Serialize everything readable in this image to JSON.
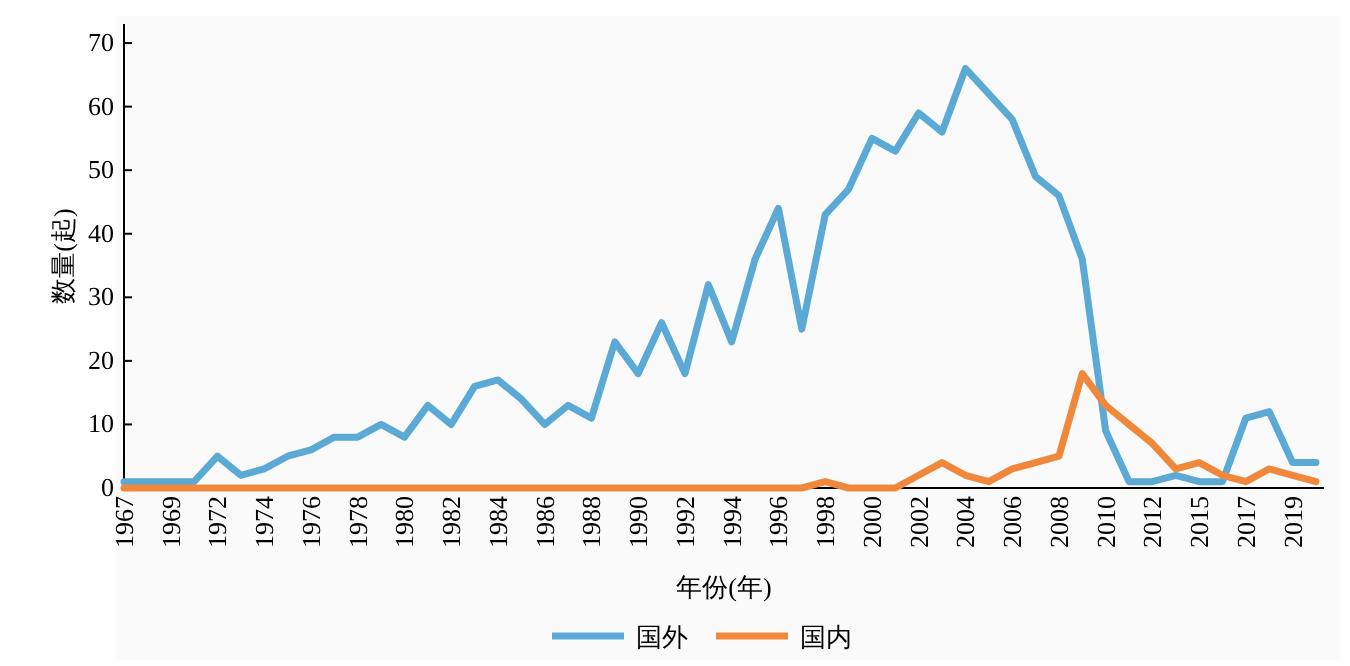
{
  "chart_data": {
    "type": "line",
    "xlabel": "年份(年)",
    "ylabel": "数量(起)",
    "categories": [
      "1967",
      null,
      "1969",
      null,
      "1972",
      null,
      "1974",
      null,
      "1976",
      null,
      "1978",
      null,
      "1980",
      null,
      "1982",
      null,
      "1984",
      null,
      "1986",
      null,
      "1988",
      null,
      "1990",
      null,
      "1992",
      null,
      "1994",
      null,
      "1996",
      null,
      "1998",
      null,
      "2000",
      null,
      "2002",
      null,
      "2004",
      null,
      "2006",
      null,
      "2008",
      null,
      "2010",
      null,
      "2012",
      null,
      "2015",
      null,
      "2017",
      null,
      "2019",
      null
    ],
    "series": [
      {
        "name": "国外",
        "color": "#5ba9d5",
        "values": [
          1,
          1,
          1,
          1,
          5,
          2,
          3,
          5,
          6,
          8,
          8,
          10,
          8,
          13,
          10,
          16,
          17,
          14,
          10,
          13,
          11,
          23,
          18,
          26,
          18,
          32,
          23,
          36,
          44,
          25,
          43,
          47,
          55,
          53,
          59,
          56,
          66,
          62,
          58,
          49,
          46,
          36,
          9,
          1,
          1,
          2,
          1,
          1,
          11,
          12,
          4,
          4
        ]
      },
      {
        "name": "国内",
        "color": "#f0883c",
        "values": [
          0,
          0,
          0,
          0,
          0,
          0,
          0,
          0,
          0,
          0,
          0,
          0,
          0,
          0,
          0,
          0,
          0,
          0,
          0,
          0,
          0,
          0,
          0,
          0,
          0,
          0,
          0,
          0,
          0,
          0,
          1,
          0,
          0,
          0,
          2,
          4,
          2,
          1,
          3,
          4,
          5,
          18,
          13,
          10,
          7,
          3,
          4,
          2,
          1,
          3,
          2,
          1
        ]
      }
    ],
    "ylim": [
      0,
      73
    ],
    "yticks": [
      0,
      10,
      20,
      30,
      40,
      50,
      60,
      70
    ],
    "grid": false,
    "legend": "bottom",
    "marker": "none",
    "line_style": "solid"
  }
}
